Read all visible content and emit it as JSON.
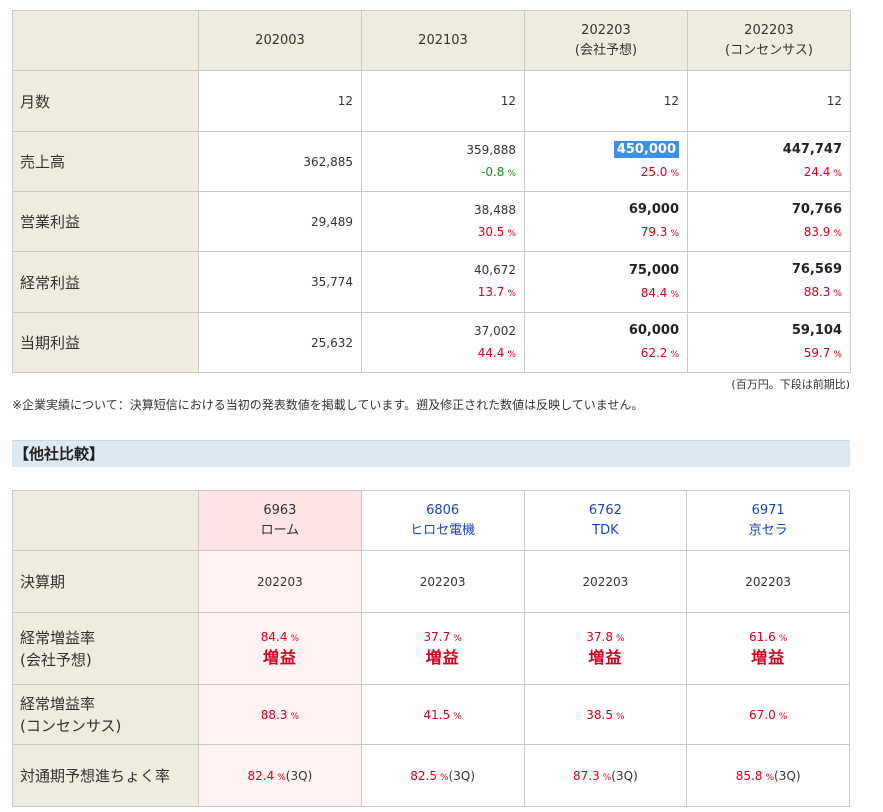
{
  "results": {
    "columns": [
      {
        "line1": "202003",
        "line2": ""
      },
      {
        "line1": "202103",
        "line2": ""
      },
      {
        "line1": "202203",
        "line2": "(会社予想)"
      },
      {
        "line1": "202203",
        "line2": "(コンセンサス)"
      }
    ],
    "rows": {
      "months": {
        "label": "月数",
        "values": [
          "12",
          "12",
          "12",
          "12"
        ]
      },
      "sales": {
        "label": "売上高",
        "values": [
          "362,885",
          "359,888",
          "450,000",
          "447,747"
        ],
        "changes": [
          "",
          "-0.8",
          "25.0",
          "24.4"
        ]
      },
      "operating": {
        "label": "営業利益",
        "values": [
          "29,489",
          "38,488",
          "69,000",
          "70,766"
        ],
        "changes": [
          "",
          "30.5",
          "79.3",
          "83.9"
        ]
      },
      "ordinary": {
        "label": "経常利益",
        "values": [
          "35,774",
          "40,672",
          "75,000",
          "76,569"
        ],
        "changes": [
          "",
          "13.7",
          "84.4",
          "88.3"
        ]
      },
      "net": {
        "label": "当期利益",
        "values": [
          "25,632",
          "37,002",
          "60,000",
          "59,104"
        ],
        "changes": [
          "",
          "44.4",
          "62.2",
          "59.7"
        ]
      }
    },
    "percent_unit": "%",
    "unit_note": "(百万円。下段は前期比)",
    "footnote": "※企業実績について：決算短信における当初の発表数値を掲載しています。遡及修正された数値は反映していません。"
  },
  "comparison": {
    "section_title": "【他社比較】",
    "companies": [
      {
        "code": "6963",
        "name": "ローム",
        "period": "202203",
        "ord_growth_co": "84.4",
        "result_co": "増益",
        "ord_growth_cons": "88.3",
        "progress": "82.4",
        "quarter": "3Q"
      },
      {
        "code": "6806",
        "name": "ヒロセ電機",
        "period": "202203",
        "ord_growth_co": "37.7",
        "result_co": "増益",
        "ord_growth_cons": "41.5",
        "progress": "82.5",
        "quarter": "3Q"
      },
      {
        "code": "6762",
        "name": "TDK",
        "period": "202203",
        "ord_growth_co": "37.8",
        "result_co": "増益",
        "ord_growth_cons": "38.5",
        "progress": "87.3",
        "quarter": "3Q"
      },
      {
        "code": "6971",
        "name": "京セラ",
        "period": "202203",
        "ord_growth_co": "61.6",
        "result_co": "増益",
        "ord_growth_cons": "67.0",
        "progress": "85.8",
        "quarter": "3Q"
      }
    ],
    "row_labels": {
      "period": "決算期",
      "ord_growth_co_1": "経常増益率",
      "ord_growth_co_2": "(会社予想)",
      "ord_growth_cons_1": "経常増益率",
      "ord_growth_cons_2": "(コンセンサス)",
      "progress": "対通期予想進ちょく率"
    }
  },
  "colors": {
    "header_bg": "#efecdf",
    "positive_red": "#d0001f",
    "negative_green": "#1a8f1a",
    "highlight": "#ffff22",
    "selection": "#3d8ee8",
    "section_bg": "#dde9f2",
    "link_blue": "#1a44b8"
  }
}
